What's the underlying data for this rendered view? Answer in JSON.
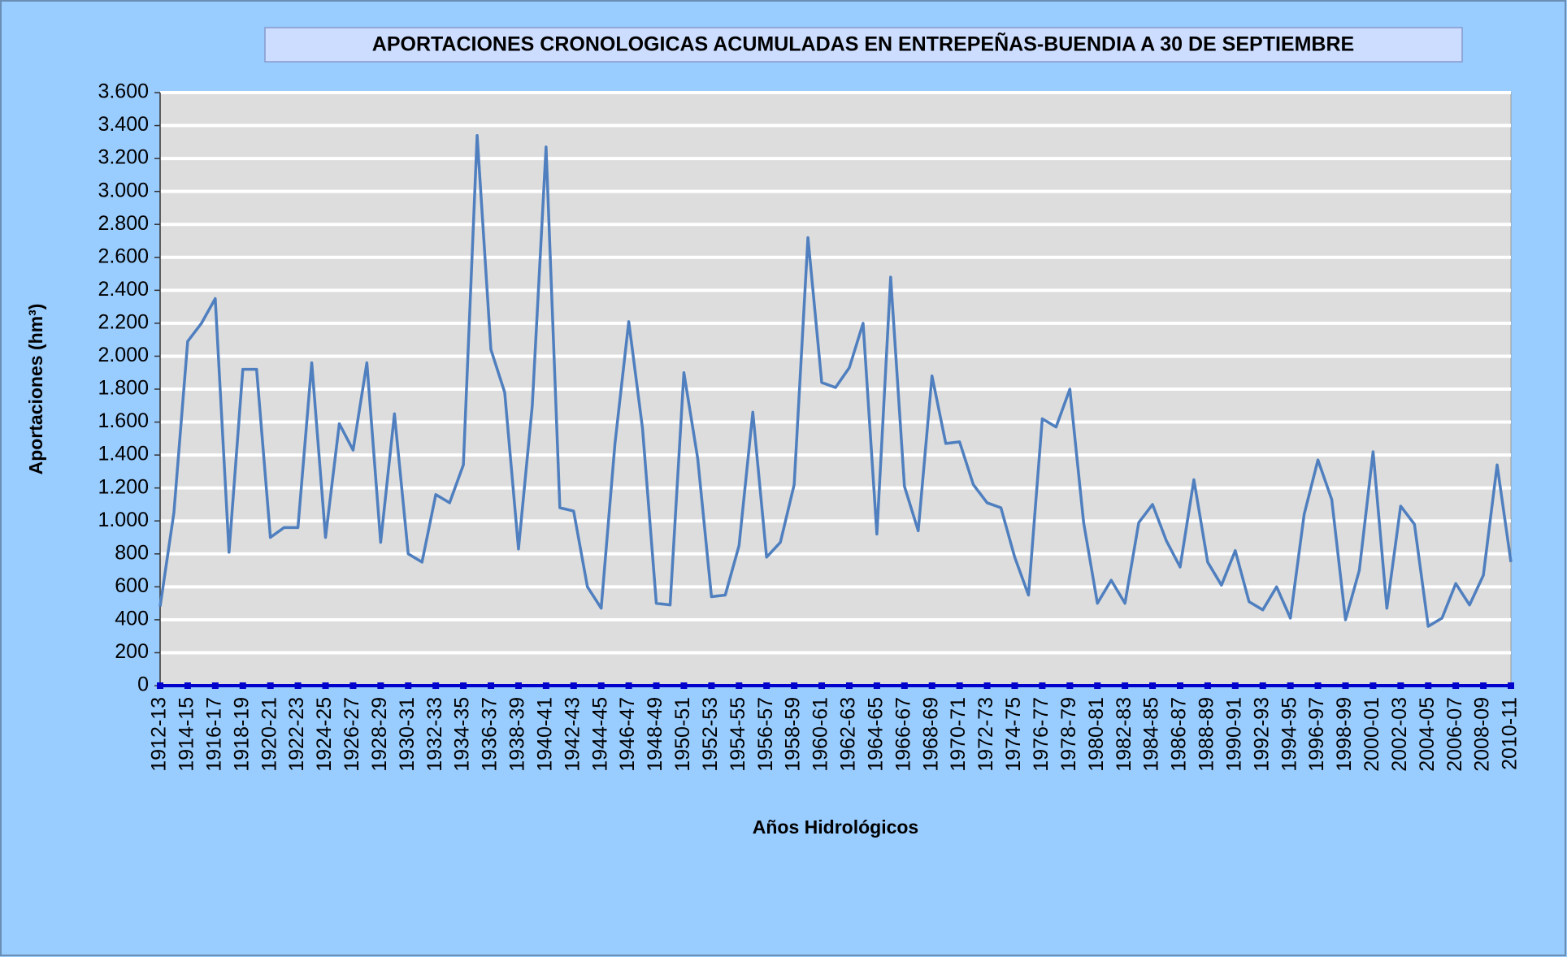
{
  "chart_data": {
    "type": "line",
    "title": "APORTACIONES CRONOLOGICAS ACUMULADAS EN ENTREPEÑAS-BUENDIA  A 30 DE SEPTIEMBRE",
    "ylabel": "Aportaciones  (hm³)",
    "xlabel": "Años Hidrológicos",
    "categories": [
      "1912-13",
      null,
      "1914-15",
      null,
      "1916-17",
      null,
      "1918-19",
      null,
      "1920-21",
      null,
      "1922-23",
      null,
      "1924-25",
      null,
      "1926-27",
      null,
      "1928-29",
      null,
      "1930-31",
      null,
      "1932-33",
      null,
      "1934-35",
      null,
      "1936-37",
      null,
      "1938-39",
      null,
      "1940-41",
      null,
      "1942-43",
      null,
      "1944-45",
      null,
      "1946-47",
      null,
      "1948-49",
      null,
      "1950-51",
      null,
      "1952-53",
      null,
      "1954-55",
      null,
      "1956-57",
      null,
      "1958-59",
      null,
      "1960-61",
      null,
      "1962-63",
      null,
      "1964-65",
      null,
      "1966-67",
      null,
      "1968-69",
      null,
      "1970-71",
      null,
      "1972-73",
      null,
      "1974-75",
      null,
      "1976-77",
      null,
      "1978-79",
      null,
      "1980-81",
      null,
      "1982-83",
      null,
      "1984-85",
      null,
      "1986-87",
      null,
      "1988-89",
      null,
      "1990-91",
      null,
      "1992-93",
      null,
      "1994-95",
      null,
      "1996-97",
      null,
      "1998-99",
      null,
      "2000-01",
      null,
      "2002-03",
      null,
      "2004-05",
      null,
      "2006-07",
      null,
      "2008-09",
      null,
      "2010-11"
    ],
    "values": [
      480,
      1050,
      2090,
      2200,
      2350,
      810,
      1920,
      1920,
      900,
      960,
      960,
      1960,
      900,
      1590,
      1430,
      1960,
      870,
      1650,
      800,
      750,
      1160,
      1110,
      1340,
      3340,
      2040,
      1780,
      830,
      1700,
      3270,
      1080,
      1060,
      600,
      470,
      1470,
      2210,
      1560,
      500,
      490,
      1900,
      1380,
      540,
      550,
      850,
      1660,
      780,
      870,
      1220,
      2720,
      1840,
      1810,
      1930,
      2200,
      920,
      2480,
      1210,
      940,
      1880,
      1470,
      1480,
      1220,
      1110,
      1080,
      780,
      550,
      1620,
      1570,
      1800,
      990,
      500,
      640,
      500,
      990,
      1100,
      880,
      720,
      1250,
      750,
      610,
      820,
      510,
      460,
      600,
      410,
      1040,
      1370,
      1130,
      400,
      700,
      1420,
      470,
      1090,
      980,
      360,
      410,
      620,
      490,
      670,
      1340,
      750
    ],
    "color": "#4f7fbf",
    "ylim": [
      0,
      3600
    ],
    "yticks": [
      0,
      200,
      400,
      600,
      800,
      {
        "value": 1000,
        "label": "1.000"
      },
      {
        "value": 1200,
        "label": "1.200"
      },
      {
        "value": 1400,
        "label": "1.400"
      },
      {
        "value": 1600,
        "label": "1.600"
      },
      {
        "value": 1800,
        "label": "1.800"
      },
      {
        "value": 2000,
        "label": "2.000"
      },
      {
        "value": 2200,
        "label": "2.200"
      },
      {
        "value": 2400,
        "label": "2.400"
      },
      {
        "value": 2600,
        "label": "2.600"
      },
      {
        "value": 2800,
        "label": "2.800"
      },
      {
        "value": 3000,
        "label": "3.000"
      },
      {
        "value": 3200,
        "label": "3.200"
      },
      {
        "value": 3400,
        "label": "3.400"
      },
      {
        "value": 3600,
        "label": "3.600"
      }
    ],
    "grid": true
  }
}
